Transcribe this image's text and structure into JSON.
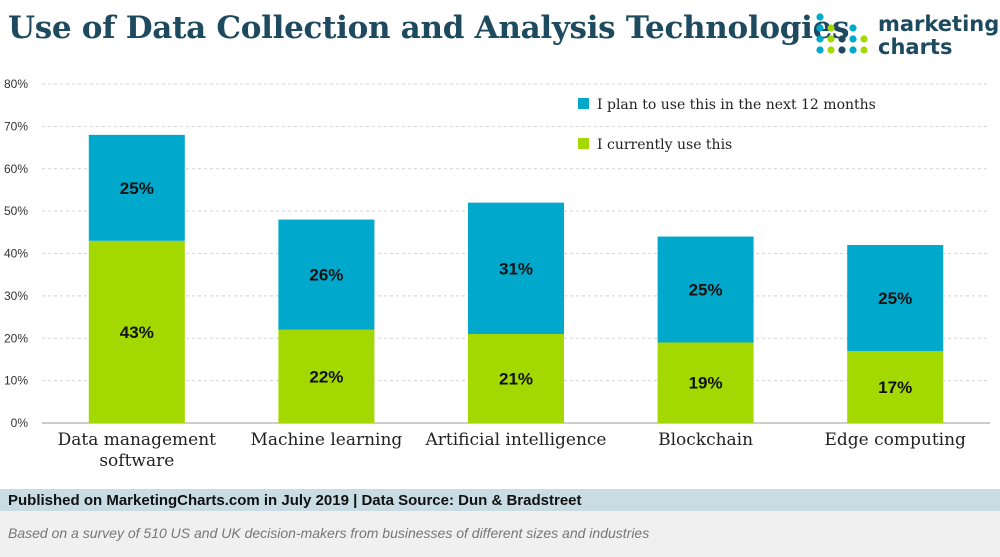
{
  "header": {
    "title": "Use of Data Collection and Analysis Technologies",
    "logo_line1": "marketing",
    "logo_line2": "charts"
  },
  "colors": {
    "plan": "#00a8cc",
    "current": "#a3d900",
    "title": "#1d4a5e",
    "grid": "#d4d4d4"
  },
  "chart_data": {
    "type": "bar",
    "stacked": true,
    "categories": [
      [
        "Data management",
        "software"
      ],
      [
        "Machine learning"
      ],
      [
        "Artificial intelligence"
      ],
      [
        "Blockchain"
      ],
      [
        "Edge computing"
      ]
    ],
    "series": [
      {
        "name": "I currently use this",
        "color": "#a3d900",
        "values": [
          43,
          22,
          21,
          19,
          17
        ],
        "labels": [
          "43%",
          "22%",
          "21%",
          "19%",
          "17%"
        ]
      },
      {
        "name": "I plan to use this in the next 12 months",
        "color": "#00a8cc",
        "values": [
          25,
          26,
          31,
          25,
          25
        ],
        "labels": [
          "25%",
          "26%",
          "31%",
          "25%",
          "25%"
        ]
      }
    ],
    "ylim": [
      0,
      80
    ],
    "yticks": [
      0,
      10,
      20,
      30,
      40,
      50,
      60,
      70,
      80
    ],
    "ytick_labels": [
      "0%",
      "10%",
      "20%",
      "30%",
      "40%",
      "50%",
      "60%",
      "70%",
      "80%"
    ],
    "grid": true,
    "legend_position": "top-right",
    "legend_order": [
      1,
      0
    ]
  },
  "footer": {
    "published": "Published on MarketingCharts.com in July 2019 | Data Source: Dun & Bradstreet",
    "note": "Based on a survey of 510 US and UK decision-makers from businesses of different sizes and industries"
  }
}
